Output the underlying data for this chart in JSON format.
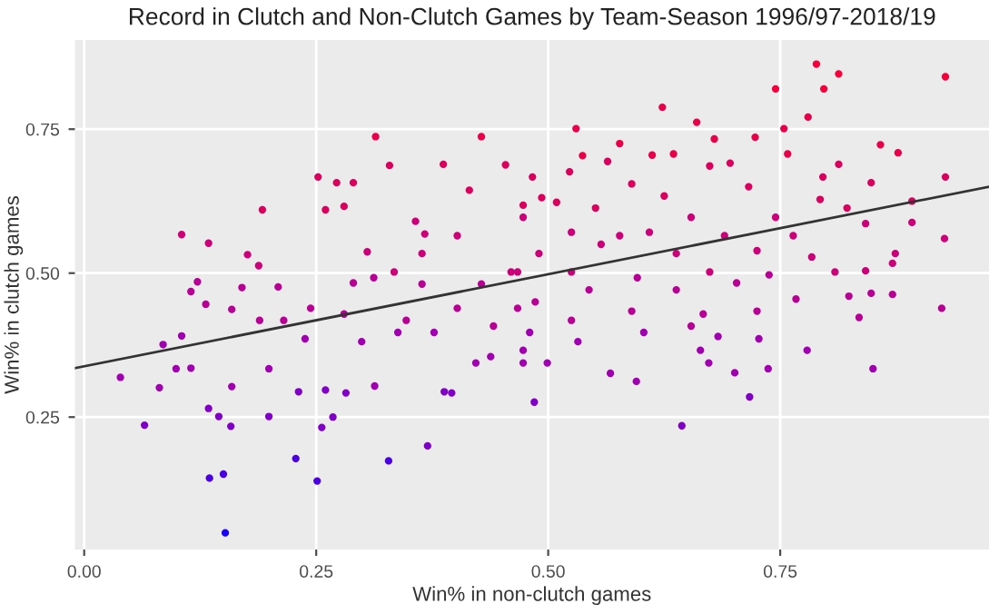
{
  "chart_data": {
    "type": "scatter",
    "title": "Record in Clutch and Non-Clutch Games by Team-Season 1996/97-2018/19",
    "xlabel": "Win% in non-clutch games",
    "ylabel": "Win% in clutch games",
    "xlim": [
      -0.01,
      0.975
    ],
    "ylim": [
      0.02,
      0.905
    ],
    "xticks": [
      {
        "value": 0,
        "label": "0.00"
      },
      0.25,
      {
        "value": 0.5,
        "label": "0.50"
      },
      0.75
    ],
    "yticks": [
      0.25,
      {
        "value": 0.5,
        "label": "0.50"
      },
      0.75
    ],
    "grid": true,
    "series": [
      {
        "marker": "circle",
        "x": [
          0.039,
          0.065,
          0.081,
          0.099,
          0.085,
          0.105,
          0.105,
          0.115,
          0.122,
          0.134,
          0.134,
          0.135,
          0.15,
          0.152,
          0.158,
          0.145,
          0.131,
          0.115,
          0.159,
          0.159,
          0.17,
          0.176,
          0.192,
          0.188,
          0.199,
          0.199,
          0.209,
          0.215,
          0.228,
          0.231,
          0.238,
          0.252,
          0.251,
          0.256,
          0.26,
          0.26,
          0.268,
          0.272,
          0.28,
          0.282,
          0.29,
          0.29,
          0.299,
          0.305,
          0.314,
          0.313,
          0.328,
          0.329,
          0.334,
          0.347,
          0.357,
          0.37,
          0.367,
          0.377,
          0.387,
          0.388,
          0.402,
          0.428,
          0.415,
          0.422,
          0.438,
          0.454,
          0.46,
          0.473,
          0.467,
          0.402,
          0.338,
          0.789,
          0.813,
          0.797,
          0.745,
          0.928,
          0.623,
          0.53,
          0.66,
          0.754,
          0.78,
          0.577,
          0.679,
          0.723,
          0.858,
          0.877,
          0.928,
          0.537,
          0.564,
          0.612,
          0.635,
          0.696,
          0.758,
          0.813,
          0.523,
          0.59,
          0.674,
          0.796,
          0.848,
          0.483,
          0.493,
          0.509,
          0.551,
          0.625,
          0.654,
          0.716,
          0.745,
          0.793,
          0.822,
          0.892,
          0.892,
          0.473,
          0.525,
          0.577,
          0.609,
          0.69,
          0.764,
          0.842,
          0.927,
          0.49,
          0.557,
          0.638,
          0.725,
          0.784,
          0.874,
          0.467,
          0.525,
          0.596,
          0.674,
          0.738,
          0.809,
          0.871,
          0.544,
          0.638,
          0.703,
          0.767,
          0.824,
          0.848,
          0.871,
          0.924,
          0.486,
          0.525,
          0.59,
          0.667,
          0.725,
          0.835,
          0.48,
          0.532,
          0.603,
          0.654,
          0.683,
          0.727,
          0.473,
          0.499,
          0.567,
          0.595,
          0.664,
          0.673,
          0.701,
          0.737,
          0.779,
          0.85,
          0.485,
          0.717,
          0.644,
          0.842,
          0.428,
          0.441,
          0.364,
          0.312,
          0.396,
          0.473,
          0.364,
          0.28,
          0.244,
          0.189
        ],
        "values": [
          0.319,
          0.236,
          0.301,
          0.334,
          0.376,
          0.567,
          0.391,
          0.468,
          0.485,
          0.552,
          0.265,
          0.144,
          0.151,
          0.049,
          0.234,
          0.251,
          0.446,
          0.335,
          0.303,
          0.437,
          0.475,
          0.532,
          0.61,
          0.513,
          0.334,
          0.251,
          0.476,
          0.418,
          0.178,
          0.294,
          0.386,
          0.667,
          0.139,
          0.232,
          0.61,
          0.297,
          0.25,
          0.657,
          0.616,
          0.292,
          0.657,
          0.483,
          0.381,
          0.537,
          0.737,
          0.304,
          0.174,
          0.687,
          0.502,
          0.418,
          0.59,
          0.2,
          0.568,
          0.397,
          0.689,
          0.294,
          0.565,
          0.737,
          0.644,
          0.344,
          0.355,
          0.688,
          0.502,
          0.366,
          0.439,
          0.439,
          0.397,
          0.863,
          0.846,
          0.82,
          0.82,
          0.841,
          0.788,
          0.751,
          0.762,
          0.751,
          0.771,
          0.725,
          0.733,
          0.736,
          0.723,
          0.709,
          0.667,
          0.704,
          0.694,
          0.705,
          0.707,
          0.691,
          0.707,
          0.689,
          0.676,
          0.655,
          0.686,
          0.667,
          0.657,
          0.667,
          0.631,
          0.623,
          0.613,
          0.634,
          0.597,
          0.65,
          0.597,
          0.628,
          0.613,
          0.625,
          0.588,
          0.597,
          0.571,
          0.565,
          0.571,
          0.565,
          0.565,
          0.586,
          0.56,
          0.534,
          0.55,
          0.534,
          0.539,
          0.528,
          0.534,
          0.502,
          0.502,
          0.492,
          0.502,
          0.497,
          0.502,
          0.517,
          0.471,
          0.471,
          0.483,
          0.455,
          0.46,
          0.465,
          0.463,
          0.439,
          0.45,
          0.418,
          0.434,
          0.429,
          0.434,
          0.423,
          0.397,
          0.381,
          0.397,
          0.408,
          0.39,
          0.386,
          0.344,
          0.344,
          0.326,
          0.312,
          0.366,
          0.344,
          0.327,
          0.334,
          0.366,
          0.334,
          0.276,
          0.285,
          0.235,
          0.504,
          0.481,
          0.408,
          0.481,
          0.492,
          0.292,
          0.618,
          0.534,
          0.429,
          0.439,
          0.418
        ],
        "colors": [
          "#a000b0",
          "#8000c8",
          "#a000b0",
          "#a000b0",
          "#a000b0",
          "#cc0078",
          "#a000b0",
          "#b80094",
          "#b80094",
          "#cc0078",
          "#8000c8",
          "#4a00e0",
          "#4a00e0",
          "#1a00f5",
          "#8000c8",
          "#8000c8",
          "#b80094",
          "#a000b0",
          "#a000b0",
          "#b80094",
          "#b80094",
          "#cc0078",
          "#dc005e",
          "#cc0078",
          "#a000b0",
          "#8000c8",
          "#b80094",
          "#b80094",
          "#4a00e0",
          "#8000c8",
          "#a000b0",
          "#dc005e",
          "#4a00e0",
          "#8000c8",
          "#dc005e",
          "#8000c8",
          "#8000c8",
          "#dc005e",
          "#dc005e",
          "#8000c8",
          "#dc005e",
          "#b80094",
          "#a000b0",
          "#cc0078",
          "#e8004a",
          "#a000b0",
          "#4a00e0",
          "#dc005e",
          "#cc0078",
          "#b80094",
          "#cc0078",
          "#8000c8",
          "#cc0078",
          "#a000b0",
          "#dc005e",
          "#8000c8",
          "#cc0078",
          "#e8004a",
          "#dc005e",
          "#a000b0",
          "#a000b0",
          "#dc005e",
          "#cc0078",
          "#a000b0",
          "#b80094",
          "#b80094",
          "#a000b0",
          "#f5003a",
          "#f5003a",
          "#f5003a",
          "#f5003a",
          "#f5003a",
          "#e8004a",
          "#e8004a",
          "#e8004a",
          "#e8004a",
          "#e8004a",
          "#e8004a",
          "#e8004a",
          "#e8004a",
          "#e8004a",
          "#e8004a",
          "#dc005e",
          "#e8004a",
          "#dc005e",
          "#e8004a",
          "#e8004a",
          "#dc005e",
          "#e8004a",
          "#dc005e",
          "#dc005e",
          "#dc005e",
          "#dc005e",
          "#dc005e",
          "#dc005e",
          "#dc005e",
          "#dc005e",
          "#dc005e",
          "#dc005e",
          "#dc005e",
          "#cc0078",
          "#dc005e",
          "#cc0078",
          "#dc005e",
          "#dc005e",
          "#dc005e",
          "#cc0078",
          "#cc0078",
          "#cc0078",
          "#cc0078",
          "#cc0078",
          "#cc0078",
          "#cc0078",
          "#cc0078",
          "#cc0078",
          "#cc0078",
          "#cc0078",
          "#cc0078",
          "#cc0078",
          "#cc0078",
          "#cc0078",
          "#cc0078",
          "#cc0078",
          "#b80094",
          "#cc0078",
          "#b80094",
          "#cc0078",
          "#cc0078",
          "#b80094",
          "#b80094",
          "#b80094",
          "#b80094",
          "#b80094",
          "#b80094",
          "#b80094",
          "#b80094",
          "#b80094",
          "#b80094",
          "#b80094",
          "#b80094",
          "#b80094",
          "#b80094",
          "#a000b0",
          "#a000b0",
          "#a000b0",
          "#b80094",
          "#a000b0",
          "#a000b0",
          "#a000b0",
          "#a000b0",
          "#a000b0",
          "#a000b0",
          "#a000b0",
          "#a000b0",
          "#a000b0",
          "#a000b0",
          "#a000b0",
          "#a000b0",
          "#8000c8",
          "#8000c8",
          "#8000c8",
          "#cc0078",
          "#b80094",
          "#b80094",
          "#b80094",
          "#b80094",
          "#8000c8",
          "#dc005e",
          "#cc0078",
          "#b80094",
          "#b80094",
          "#b80094"
        ]
      },
      {
        "type": "line",
        "color": "#333333",
        "x": [
          -0.01,
          0.975
        ],
        "values": [
          0.335,
          0.65
        ]
      }
    ]
  }
}
